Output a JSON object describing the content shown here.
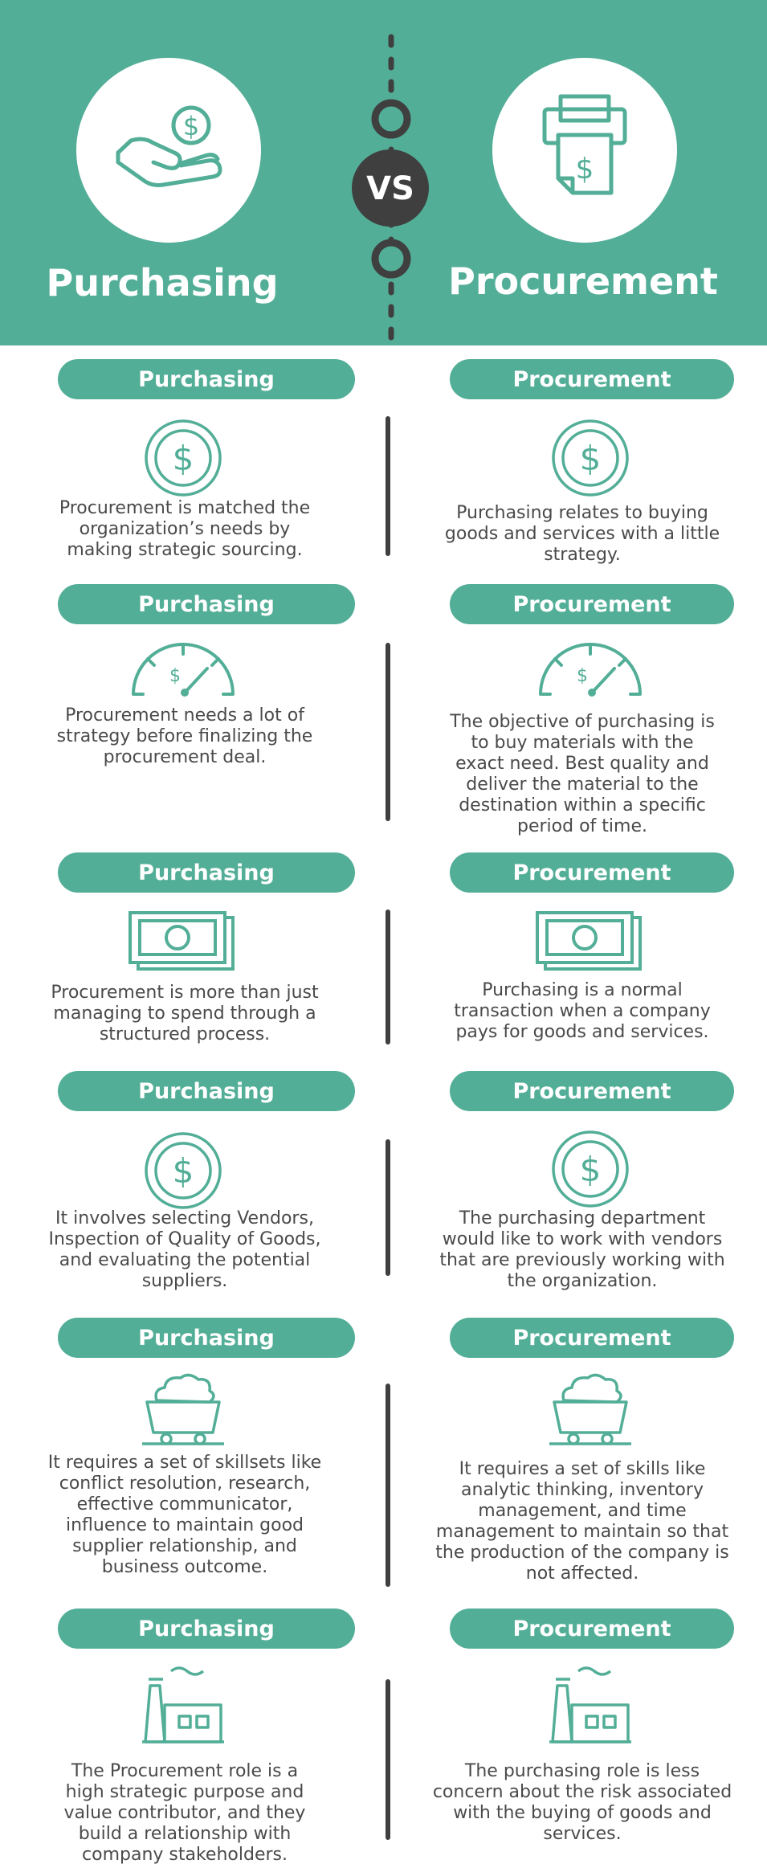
{
  "colors": {
    "teal": "#53ae97",
    "dark": "#3f3f3f",
    "text": "#4a4a4a",
    "white": "#ffffff"
  },
  "header": {
    "left_title": "Purchasing",
    "right_title": "Procurement",
    "vs_label": "VS",
    "left_icon": "hand-coin-icon",
    "right_icon": "receipt-printer-icon"
  },
  "rows": [
    {
      "left_label": "Purchasing",
      "right_label": "Procurement",
      "icon": "dollar-coin-icon",
      "left_text": "Procurement is matched the\norganization’s needs by\nmaking strategic sourcing.",
      "right_text": "Purchasing relates to buying\ngoods and services with a little\nstrategy."
    },
    {
      "left_label": "Purchasing",
      "right_label": "Procurement",
      "icon": "gauge-icon",
      "left_text": "Procurement needs a lot of\nstrategy before finalizing the\nprocurement deal.",
      "right_text": "The objective of purchasing is\nto buy materials with the\nexact need. Best quality and\ndeliver the material to the\ndestination within a specific\nperiod of time."
    },
    {
      "left_label": "Purchasing",
      "right_label": "Procurement",
      "icon": "banknote-icon",
      "left_text": "Procurement is more than just\nmanaging to spend through a\nstructured process.",
      "right_text": "Purchasing is a normal\ntransaction when a company\npays for goods and services."
    },
    {
      "left_label": "Purchasing",
      "right_label": "Procurement",
      "icon": "dollar-coin-icon",
      "left_text": "It involves selecting Vendors,\nInspection of Quality of Goods,\nand evaluating the potential\nsuppliers.",
      "right_text": "The purchasing department\nwould like to work with vendors\nthat are previously working with\nthe organization."
    },
    {
      "left_label": "Purchasing",
      "right_label": "Procurement",
      "icon": "mine-cart-icon",
      "left_text": "It requires a set of skillsets like\nconflict resolution, research,\neffective communicator,\ninfluence to maintain good\nsupplier relationship, and\nbusiness outcome.",
      "right_text": "It requires a set of skills like\nanalytic thinking, inventory\nmanagement, and time\nmanagement to maintain so that\nthe production of the company is\nnot affected."
    },
    {
      "left_label": "Purchasing",
      "right_label": "Procurement",
      "icon": "factory-icon",
      "left_text": "The Procurement role is a\nhigh strategic purpose and\nvalue contributor, and they\nbuild a relationship with\ncompany stakeholders.",
      "right_text": "The purchasing role is less\nconcern about the risk associated\nwith the buying of goods and\nservices."
    }
  ]
}
